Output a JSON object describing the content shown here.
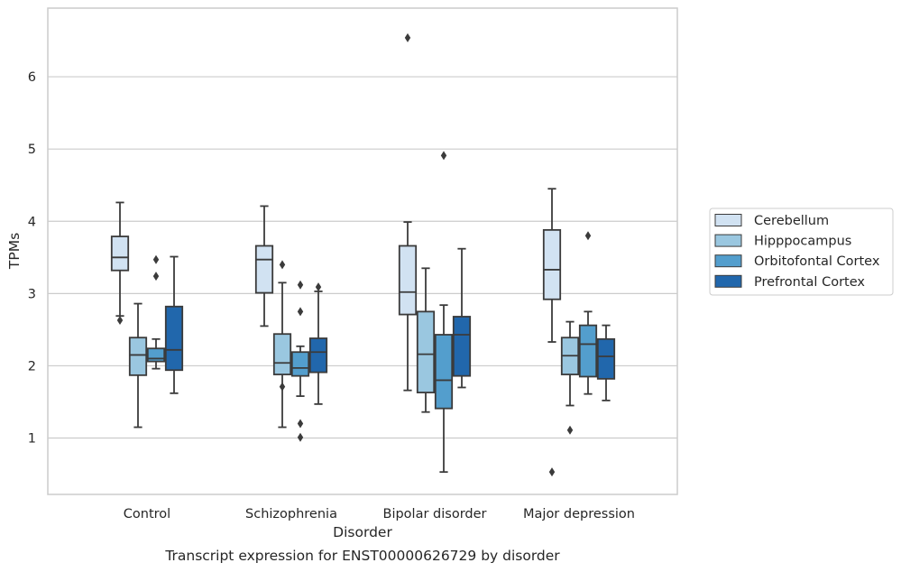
{
  "caption": "Transcript expression for ENST00000626729 by disorder",
  "chart_data": {
    "type": "box",
    "xlabel": "Disorder",
    "ylabel": "TPMs",
    "ylim": [
      0.22,
      6.95
    ],
    "yticks": [
      1,
      2,
      3,
      4,
      5,
      6
    ],
    "grid": true,
    "legend_position": "right",
    "categories": [
      "Control",
      "Schizophrenia",
      "Bipolar disorder",
      "Major depression"
    ],
    "series": [
      {
        "name": "Cerebellum",
        "color": "#d1e2f2",
        "boxes": [
          {
            "whislo": 2.69,
            "q1": 3.32,
            "med": 3.5,
            "q3": 3.79,
            "whishi": 4.26,
            "fliers": [
              2.63
            ]
          },
          {
            "whislo": 2.55,
            "q1": 3.01,
            "med": 3.47,
            "q3": 3.66,
            "whishi": 4.21,
            "fliers": []
          },
          {
            "whislo": 1.66,
            "q1": 2.71,
            "med": 3.02,
            "q3": 3.66,
            "whishi": 3.99,
            "fliers": [
              6.54
            ]
          },
          {
            "whislo": 2.33,
            "q1": 2.92,
            "med": 3.33,
            "q3": 3.88,
            "whishi": 4.45,
            "fliers": [
              0.53
            ]
          }
        ]
      },
      {
        "name": "Hipppocampus",
        "color": "#9ac7e0",
        "boxes": [
          {
            "whislo": 1.15,
            "q1": 1.87,
            "med": 2.15,
            "q3": 2.39,
            "whishi": 2.86,
            "fliers": []
          },
          {
            "whislo": 1.15,
            "q1": 1.88,
            "med": 2.04,
            "q3": 2.44,
            "whishi": 3.15,
            "fliers": [
              1.71,
              3.4
            ]
          },
          {
            "whislo": 1.36,
            "q1": 1.63,
            "med": 2.16,
            "q3": 2.75,
            "whishi": 3.35,
            "fliers": []
          },
          {
            "whislo": 1.45,
            "q1": 1.88,
            "med": 2.14,
            "q3": 2.39,
            "whishi": 2.61,
            "fliers": [
              1.11
            ]
          }
        ]
      },
      {
        "name": "Orbitofontal Cortex",
        "color": "#539ecd",
        "boxes": [
          {
            "whislo": 1.96,
            "q1": 2.06,
            "med": 2.1,
            "q3": 2.24,
            "whishi": 2.37,
            "fliers": [
              3.24,
              3.47
            ]
          },
          {
            "whislo": 1.58,
            "q1": 1.86,
            "med": 1.97,
            "q3": 2.19,
            "whishi": 2.27,
            "fliers": [
              1.01,
              1.2,
              2.75,
              3.12
            ]
          },
          {
            "whislo": 0.53,
            "q1": 1.41,
            "med": 1.8,
            "q3": 2.43,
            "whishi": 2.84,
            "fliers": [
              4.91
            ]
          },
          {
            "whislo": 1.61,
            "q1": 1.85,
            "med": 2.3,
            "q3": 2.56,
            "whishi": 2.75,
            "fliers": [
              3.8
            ]
          }
        ]
      },
      {
        "name": "Prefrontal Cortex",
        "color": "#2167ac",
        "boxes": [
          {
            "whislo": 1.62,
            "q1": 1.94,
            "med": 2.22,
            "q3": 2.82,
            "whishi": 3.51,
            "fliers": []
          },
          {
            "whislo": 1.47,
            "q1": 1.91,
            "med": 2.19,
            "q3": 2.38,
            "whishi": 3.03,
            "fliers": [
              3.09
            ]
          },
          {
            "whislo": 1.7,
            "q1": 1.86,
            "med": 2.43,
            "q3": 2.68,
            "whishi": 3.62,
            "fliers": []
          },
          {
            "whislo": 1.52,
            "q1": 1.82,
            "med": 2.13,
            "q3": 2.37,
            "whishi": 2.56,
            "fliers": []
          }
        ]
      }
    ]
  }
}
